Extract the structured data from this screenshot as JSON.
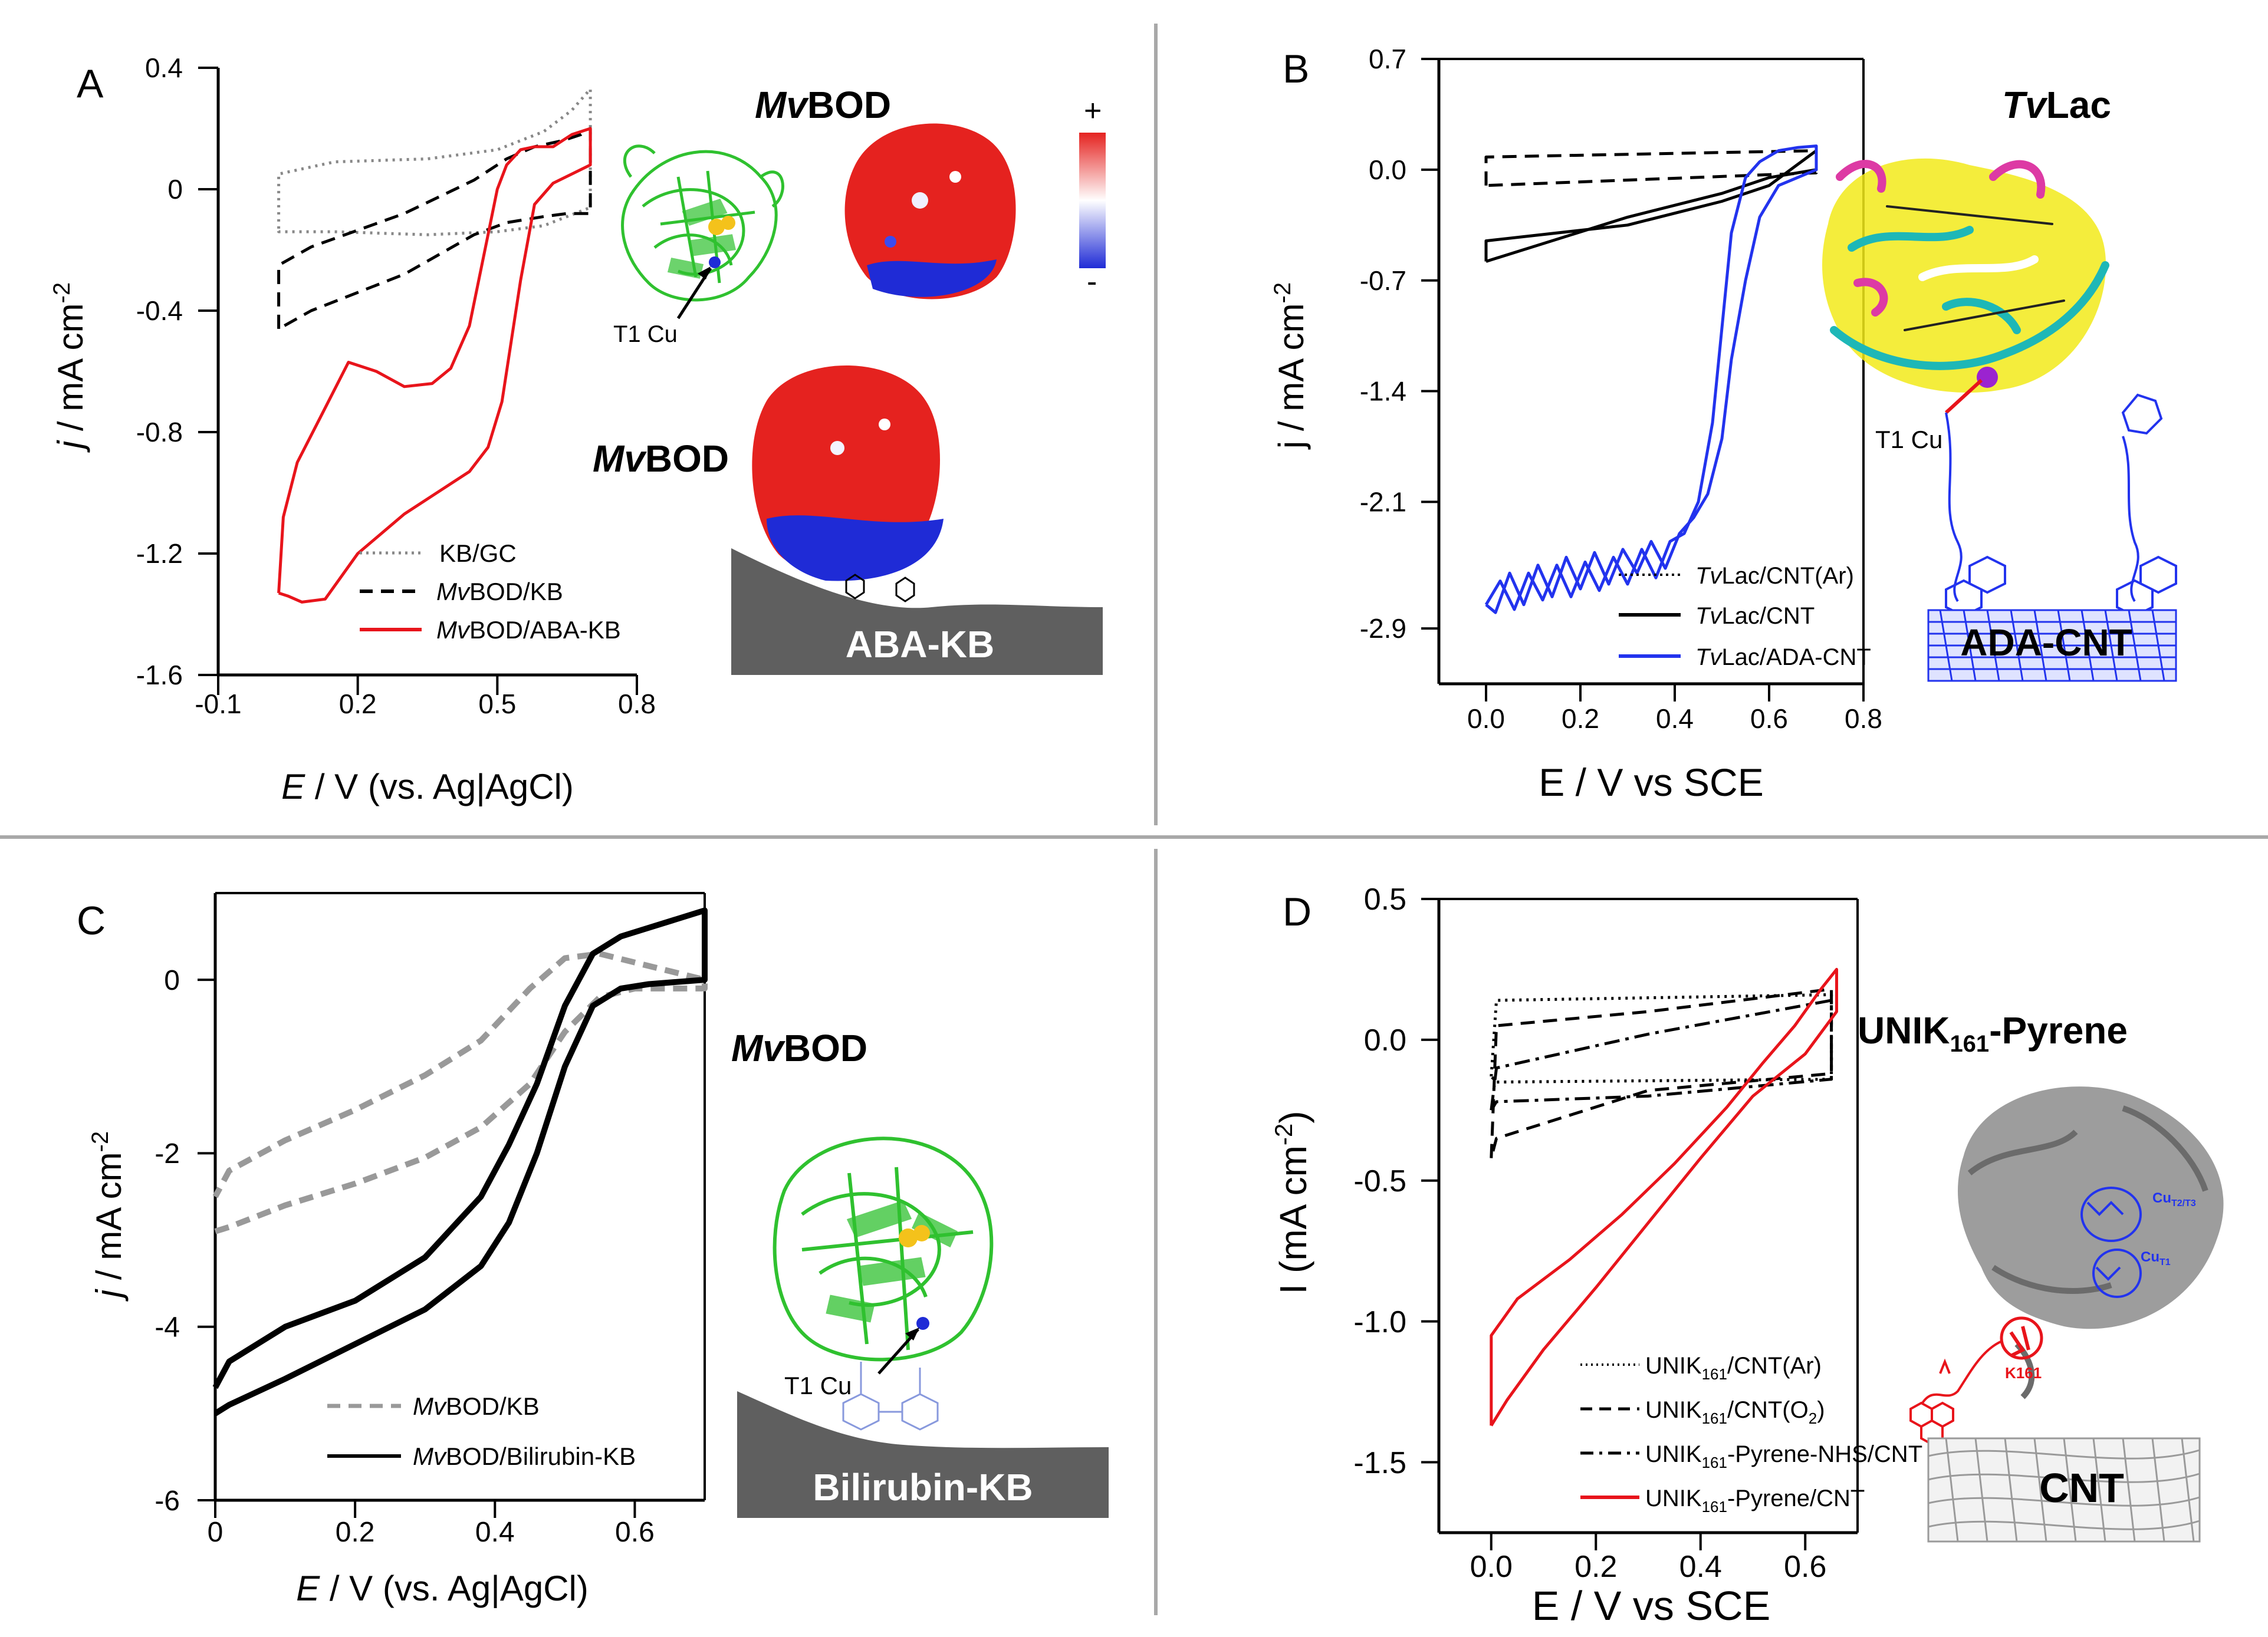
{
  "colors": {
    "black": "#000000",
    "red": "#e8141b",
    "blue": "#2233ee",
    "grey_dash": "#999999",
    "grey_dot": "#888888",
    "divider": "#a8a8a8",
    "bod_green": "#2fc12f",
    "surface_red": "#e5221f",
    "surface_blue": "#1f2bd6",
    "substrate_grey": "#5f5f5f",
    "lac_yellow": "#f2ea1a",
    "lac_cyan": "#1eb7b7",
    "lac_magenta": "#dd3aa4",
    "protein_grey": "#8c8c8c"
  },
  "chart_data": [
    {
      "panel": "A",
      "type": "line",
      "xlabel_italic": "E",
      "xlabel_rest": " / V (vs. Ag|AgCl)",
      "ylabel_italic": "j",
      "ylabel_rest": " / mA cm",
      "ylabel_sup": "-2",
      "xlim": [
        -0.1,
        0.8
      ],
      "ylim": [
        -1.6,
        0.4
      ],
      "xticks": [
        -0.1,
        0.2,
        0.5,
        0.8
      ],
      "xticklabels": [
        "-0.1",
        "0.2",
        "0.5",
        "0.8"
      ],
      "yticks": [
        0.4,
        0,
        -0.4,
        -0.8,
        -1.2,
        -1.6
      ],
      "yticklabels": [
        "0.4",
        "0",
        "-0.4",
        "-0.8",
        "-1.2",
        "-1.6"
      ],
      "series": [
        {
          "name": "KB/GC",
          "style": "dot",
          "color": "#888888",
          "x": [
            0.03,
            0.03,
            0.15,
            0.35,
            0.5,
            0.6,
            0.66,
            0.7,
            0.7,
            0.6,
            0.5,
            0.35,
            0.15,
            0.03,
            0.03
          ],
          "y": [
            -0.13,
            0.05,
            0.09,
            0.1,
            0.13,
            0.19,
            0.26,
            0.33,
            -0.06,
            -0.12,
            -0.14,
            -0.15,
            -0.14,
            -0.14,
            -0.13
          ]
        },
        {
          "name": "MvBOD/KB",
          "style": "dash",
          "color": "#000000",
          "x": [
            0.03,
            0.03,
            0.1,
            0.3,
            0.45,
            0.52,
            0.58,
            0.64,
            0.68,
            0.7,
            0.7,
            0.65,
            0.6,
            0.52,
            0.45,
            0.3,
            0.1,
            0.03
          ],
          "y": [
            -0.46,
            -0.25,
            -0.19,
            -0.08,
            0.03,
            0.1,
            0.14,
            0.16,
            0.18,
            0.2,
            -0.08,
            -0.08,
            -0.09,
            -0.11,
            -0.15,
            -0.28,
            -0.4,
            -0.46
          ]
        },
        {
          "name": "MvBOD/ABA-KB",
          "style": "solid",
          "color": "#e8141b",
          "x": [
            0.03,
            0.04,
            0.07,
            0.12,
            0.18,
            0.24,
            0.3,
            0.36,
            0.4,
            0.44,
            0.48,
            0.5,
            0.52,
            0.55,
            0.58,
            0.62,
            0.66,
            0.7,
            0.7,
            0.66,
            0.62,
            0.58,
            0.55,
            0.53,
            0.51,
            0.48,
            0.44,
            0.38,
            0.3,
            0.2,
            0.13,
            0.08,
            0.05,
            0.03
          ],
          "y": [
            -1.33,
            -1.08,
            -0.9,
            -0.75,
            -0.57,
            -0.6,
            -0.65,
            -0.64,
            -0.59,
            -0.45,
            -0.15,
            0.0,
            0.08,
            0.13,
            0.14,
            0.14,
            0.18,
            0.2,
            0.08,
            0.05,
            0.02,
            -0.05,
            -0.3,
            -0.5,
            -0.7,
            -0.85,
            -0.93,
            -0.99,
            -1.07,
            -1.2,
            -1.35,
            -1.36,
            -1.34,
            -1.33
          ]
        }
      ],
      "legend": [
        {
          "label": "KB/GC",
          "style": "dot"
        },
        {
          "label_italic": "Mv",
          "label_rest": "BOD/KB",
          "style": "dash"
        },
        {
          "label_italic": "Mv",
          "label_rest": "BOD/ABA-KB",
          "style": "solid"
        }
      ],
      "annotations": {
        "letter": "A",
        "title1_italic": "Mv",
        "title1_rest": "BOD",
        "title2_italic": "Mv",
        "title2_rest": "BOD",
        "t1": "T1 Cu",
        "plus": "+",
        "minus": "-",
        "substrate": "ABA-KB"
      }
    },
    {
      "panel": "B",
      "type": "line",
      "xlabel": "E / V vs SCE",
      "ylabel": "j / mA cm",
      "ylabel_sup": "-2",
      "xlim": [
        -0.1,
        0.8
      ],
      "ylim": [
        -3.25,
        0.7
      ],
      "xticks": [
        0.0,
        0.2,
        0.4,
        0.6,
        0.8
      ],
      "xticklabels": [
        "0.0",
        "0.2",
        "0.4",
        "0.6",
        "0.8"
      ],
      "yticks": [
        0.7,
        0.0,
        -0.7,
        -1.4,
        -2.1,
        -2.9
      ],
      "yticklabels": [
        "0.7",
        "0.0",
        "-0.7",
        "-1.4",
        "-2.1",
        "-2.9"
      ],
      "series": [
        {
          "name": "TvLac/CNT(Ar)",
          "style": "dash",
          "color": "#000000",
          "x": [
            0.0,
            0.0,
            0.7,
            0.7,
            0.0
          ],
          "y": [
            -0.1,
            0.08,
            0.12,
            -0.02,
            -0.1
          ]
        },
        {
          "name": "TvLac/CNT",
          "style": "solid",
          "color": "#000000",
          "x": [
            0.0,
            0.0,
            0.3,
            0.5,
            0.6,
            0.7,
            0.7,
            0.6,
            0.5,
            0.3,
            0.0
          ],
          "y": [
            -0.58,
            -0.45,
            -0.35,
            -0.2,
            -0.1,
            0.12,
            0.0,
            -0.05,
            -0.15,
            -0.3,
            -0.58
          ]
        },
        {
          "name": "TvLac/ADA-CNT",
          "style": "solid",
          "color": "#2233ee",
          "x": [
            0.0,
            0.03,
            0.06,
            0.09,
            0.12,
            0.15,
            0.18,
            0.21,
            0.24,
            0.27,
            0.3,
            0.33,
            0.36,
            0.39,
            0.42,
            0.45,
            0.48,
            0.5,
            0.52,
            0.55,
            0.58,
            0.62,
            0.66,
            0.7,
            0.7,
            0.66,
            0.62,
            0.58,
            0.55,
            0.52,
            0.5,
            0.47,
            0.44,
            0.41,
            0.38,
            0.35,
            0.32,
            0.29,
            0.26,
            0.23,
            0.2,
            0.17,
            0.14,
            0.11,
            0.08,
            0.05,
            0.02,
            0.0
          ],
          "y": [
            -2.75,
            -2.6,
            -2.78,
            -2.55,
            -2.72,
            -2.5,
            -2.7,
            -2.48,
            -2.66,
            -2.45,
            -2.62,
            -2.4,
            -2.58,
            -2.35,
            -2.3,
            -2.1,
            -1.6,
            -1.0,
            -0.4,
            -0.05,
            0.05,
            0.12,
            0.14,
            0.15,
            0.0,
            -0.05,
            -0.1,
            -0.3,
            -0.7,
            -1.2,
            -1.7,
            -2.05,
            -2.2,
            -2.3,
            -2.52,
            -2.35,
            -2.55,
            -2.4,
            -2.62,
            -2.42,
            -2.65,
            -2.45,
            -2.7,
            -2.5,
            -2.75,
            -2.55,
            -2.8,
            -2.75
          ]
        }
      ],
      "legend": [
        {
          "label_italic": "Tv",
          "label_rest": "Lac/CNT(Ar)",
          "style": "dot"
        },
        {
          "label_italic": "Tv",
          "label_rest": "Lac/CNT",
          "style": "solid"
        },
        {
          "label_italic": "Tv",
          "label_rest": "Lac/ADA-CNT",
          "style": "solid-blue"
        }
      ],
      "annotations": {
        "letter": "B",
        "title_italic": "Tv",
        "title_rest": "Lac",
        "t1": "T1 Cu",
        "substrate": "ADA-CNT"
      }
    },
    {
      "panel": "C",
      "type": "line",
      "xlabel_italic": "E",
      "xlabel_rest": " / V (vs. Ag|AgCl)",
      "ylabel_italic": "j",
      "ylabel_rest": " / mA cm",
      "ylabel_sup": "-2",
      "xlim": [
        0.0,
        0.7
      ],
      "ylim": [
        -6.0,
        1.0
      ],
      "xticks": [
        0.0,
        0.2,
        0.4,
        0.6
      ],
      "xticklabels": [
        "0",
        "0.2",
        "0.4",
        "0.6"
      ],
      "yticks": [
        0,
        -2,
        -4,
        -6
      ],
      "yticklabels": [
        "0",
        "-2",
        "-4",
        "-6"
      ],
      "series": [
        {
          "name": "MvBOD/KB",
          "style": "dash",
          "color": "#999999",
          "x": [
            0.0,
            0.02,
            0.1,
            0.2,
            0.3,
            0.38,
            0.45,
            0.5,
            0.55,
            0.6,
            0.7,
            0.7,
            0.6,
            0.55,
            0.5,
            0.45,
            0.38,
            0.3,
            0.2,
            0.1,
            0.02,
            0.0
          ],
          "y": [
            -2.9,
            -2.85,
            -2.6,
            -2.35,
            -2.05,
            -1.7,
            -1.2,
            -0.6,
            -0.2,
            -0.1,
            -0.1,
            0.0,
            0.2,
            0.3,
            0.25,
            -0.1,
            -0.7,
            -1.1,
            -1.5,
            -1.85,
            -2.2,
            -2.5
          ]
        },
        {
          "name": "MvBOD/Bilirubin-KB",
          "style": "solid",
          "color": "#000000",
          "x": [
            0.0,
            0.02,
            0.1,
            0.2,
            0.3,
            0.38,
            0.42,
            0.46,
            0.5,
            0.54,
            0.58,
            0.62,
            0.7,
            0.7,
            0.62,
            0.58,
            0.54,
            0.5,
            0.46,
            0.42,
            0.38,
            0.3,
            0.2,
            0.1,
            0.02,
            0.0
          ],
          "y": [
            -5.0,
            -4.9,
            -4.6,
            -4.2,
            -3.8,
            -3.3,
            -2.8,
            -2.0,
            -1.0,
            -0.3,
            -0.1,
            -0.05,
            0.0,
            0.8,
            0.6,
            0.5,
            0.3,
            -0.3,
            -1.2,
            -1.9,
            -2.5,
            -3.2,
            -3.7,
            -4.0,
            -4.4,
            -4.7
          ]
        }
      ],
      "legend": [
        {
          "label_italic": "Mv",
          "label_rest": "BOD/KB",
          "style": "dash-grey"
        },
        {
          "label_italic": "Mv",
          "label_rest": "BOD/Bilirubin-KB",
          "style": "solid"
        }
      ],
      "annotations": {
        "letter": "C",
        "title_italic": "Mv",
        "title_rest": "BOD",
        "t1": "T1 Cu",
        "substrate": "Bilirubin-KB"
      }
    },
    {
      "panel": "D",
      "type": "line",
      "xlabel": "E / V vs SCE",
      "ylabel": "I (mA cm",
      "ylabel_sup": "-2",
      "ylabel_close": ")",
      "xlim": [
        -0.1,
        0.7
      ],
      "ylim": [
        -1.75,
        0.5
      ],
      "xticks": [
        0.0,
        0.2,
        0.4,
        0.6
      ],
      "xticklabels": [
        "0.0",
        "0.2",
        "0.4",
        "0.6"
      ],
      "yticks": [
        0.5,
        0.0,
        -0.5,
        -1.0,
        -1.5
      ],
      "yticklabels": [
        "0.5",
        "0.0",
        "-0.5",
        "-1.0",
        "-1.5"
      ],
      "series": [
        {
          "name": "UNIK161/CNT(Ar)",
          "style": "dot",
          "color": "#000000",
          "x": [
            0.0,
            0.01,
            0.65,
            0.65,
            0.01,
            0.0
          ],
          "y": [
            -0.13,
            0.14,
            0.16,
            -0.14,
            -0.15,
            -0.13
          ]
        },
        {
          "name": "UNIK161/CNT(O2)",
          "style": "dash",
          "color": "#000000",
          "x": [
            0.0,
            0.01,
            0.3,
            0.65,
            0.65,
            0.3,
            0.01,
            0.0
          ],
          "y": [
            -0.42,
            0.05,
            0.1,
            0.18,
            -0.12,
            -0.18,
            -0.35,
            -0.42
          ]
        },
        {
          "name": "UNIK161-Pyrene-NHS/CNT",
          "style": "dashdot",
          "color": "#000000",
          "x": [
            0.0,
            0.01,
            0.3,
            0.65,
            0.65,
            0.3,
            0.01,
            0.0
          ],
          "y": [
            -0.25,
            -0.1,
            0.02,
            0.14,
            -0.14,
            -0.2,
            -0.22,
            -0.25
          ]
        },
        {
          "name": "UNIK161-Pyrene/CNT",
          "style": "solid",
          "color": "#e8141b",
          "x": [
            0.0,
            0.0,
            0.05,
            0.15,
            0.25,
            0.35,
            0.45,
            0.52,
            0.58,
            0.63,
            0.66,
            0.66,
            0.6,
            0.5,
            0.4,
            0.3,
            0.2,
            0.1,
            0.03,
            0.0
          ],
          "y": [
            -1.37,
            -1.05,
            -0.92,
            -0.78,
            -0.62,
            -0.44,
            -0.24,
            -0.08,
            0.05,
            0.18,
            0.25,
            0.1,
            -0.05,
            -0.2,
            -0.42,
            -0.65,
            -0.88,
            -1.1,
            -1.28,
            -1.37
          ]
        }
      ],
      "legend": [
        {
          "label_main": "UNIK",
          "label_sub": "161",
          "label_rest": "/CNT(Ar)",
          "style": "dot"
        },
        {
          "label_main": "UNIK",
          "label_sub": "161",
          "label_rest": "/CNT(O",
          "label_sub2": "2",
          "label_rest2": ")",
          "style": "dash"
        },
        {
          "label_main": "UNIK",
          "label_sub": "161",
          "label_rest": "-Pyrene-NHS/CNT",
          "style": "dashdot"
        },
        {
          "label_main": "UNIK",
          "label_sub": "161",
          "label_rest": "-Pyrene/CNT",
          "style": "solid-red"
        }
      ],
      "annotations": {
        "letter": "D",
        "title_main": "UNIK",
        "title_sub": "161",
        "title_rest": "-Pyrene",
        "cu_t2t3": "Cu",
        "cu_t2t3_sub": "T2/T3",
        "cu_t1": "Cu",
        "cu_t1_sub": "T1",
        "k161": "K161",
        "substrate": "CNT"
      }
    }
  ]
}
